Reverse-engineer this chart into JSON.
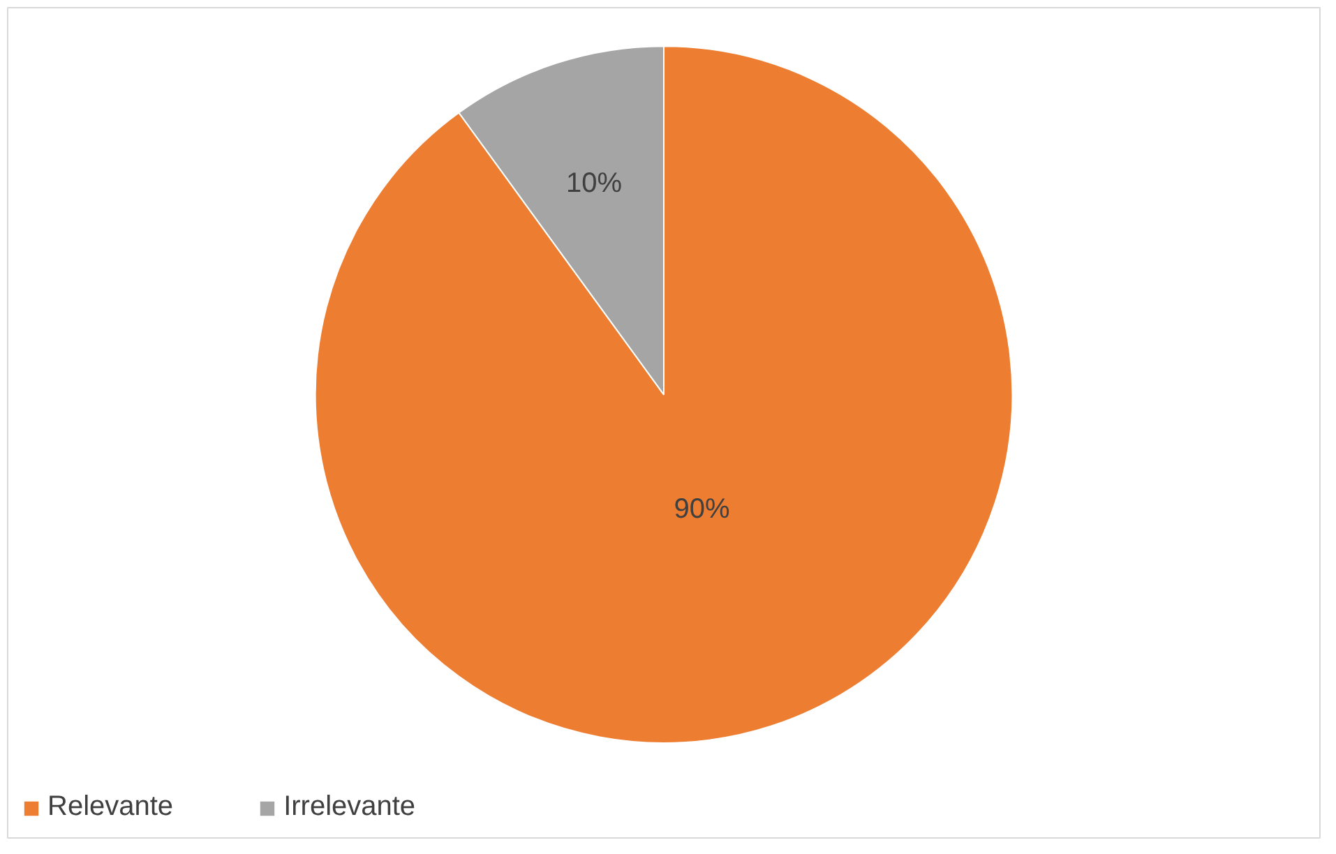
{
  "chart_data": {
    "type": "pie",
    "categories": [
      "Relevante",
      "Irrelevante"
    ],
    "values": [
      90,
      10
    ],
    "colors": [
      "#ed7d31",
      "#a5a5a5"
    ],
    "value_labels": [
      "90%",
      "10%"
    ],
    "legend": "bottom"
  }
}
